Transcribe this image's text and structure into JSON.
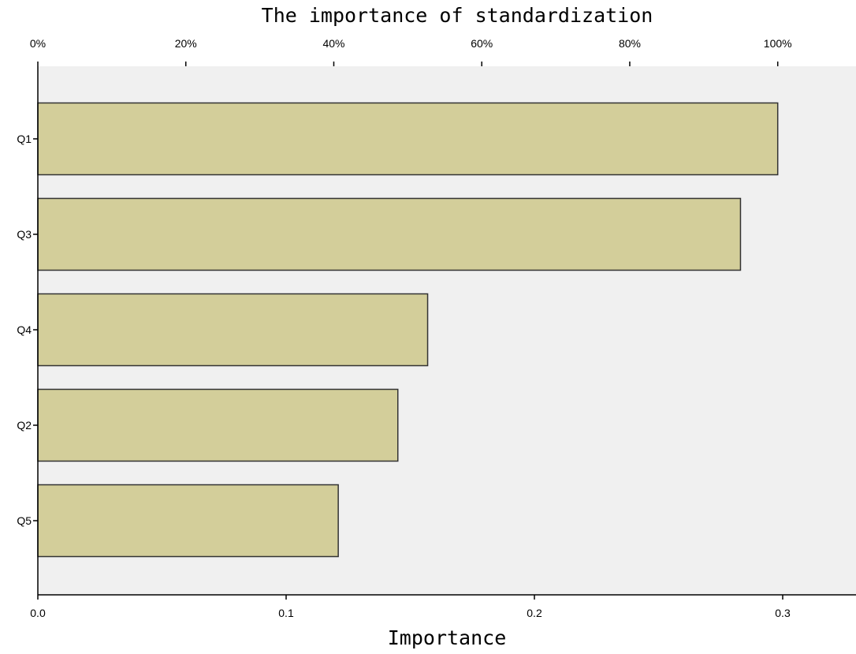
{
  "chart_data": {
    "type": "bar",
    "orientation": "horizontal",
    "title": "The importance of standardization",
    "xlabel": "Importance",
    "ylabel": "",
    "categories": [
      "Q1",
      "Q3",
      "Q4",
      "Q2",
      "Q5"
    ],
    "values": [
      0.298,
      0.283,
      0.157,
      0.145,
      0.121
    ],
    "xlim": [
      0.0,
      0.33
    ],
    "x_ticks": [
      0.0,
      0.1,
      0.2,
      0.3
    ],
    "x_tick_labels": [
      "0.0",
      "0.1",
      "0.2",
      "0.3"
    ],
    "top_axis": {
      "ticks_fraction_of_max": [
        0,
        0.2,
        0.4,
        0.6,
        0.8,
        1.0
      ],
      "tick_labels": [
        "0%",
        "20%",
        "40%",
        "60%",
        "80%",
        "100%"
      ]
    },
    "grid": false,
    "legend": "none",
    "colors": {
      "bar_fill": "#d3ce9a",
      "bar_stroke": "#333333",
      "plot_background": "#f0f0f0"
    }
  }
}
